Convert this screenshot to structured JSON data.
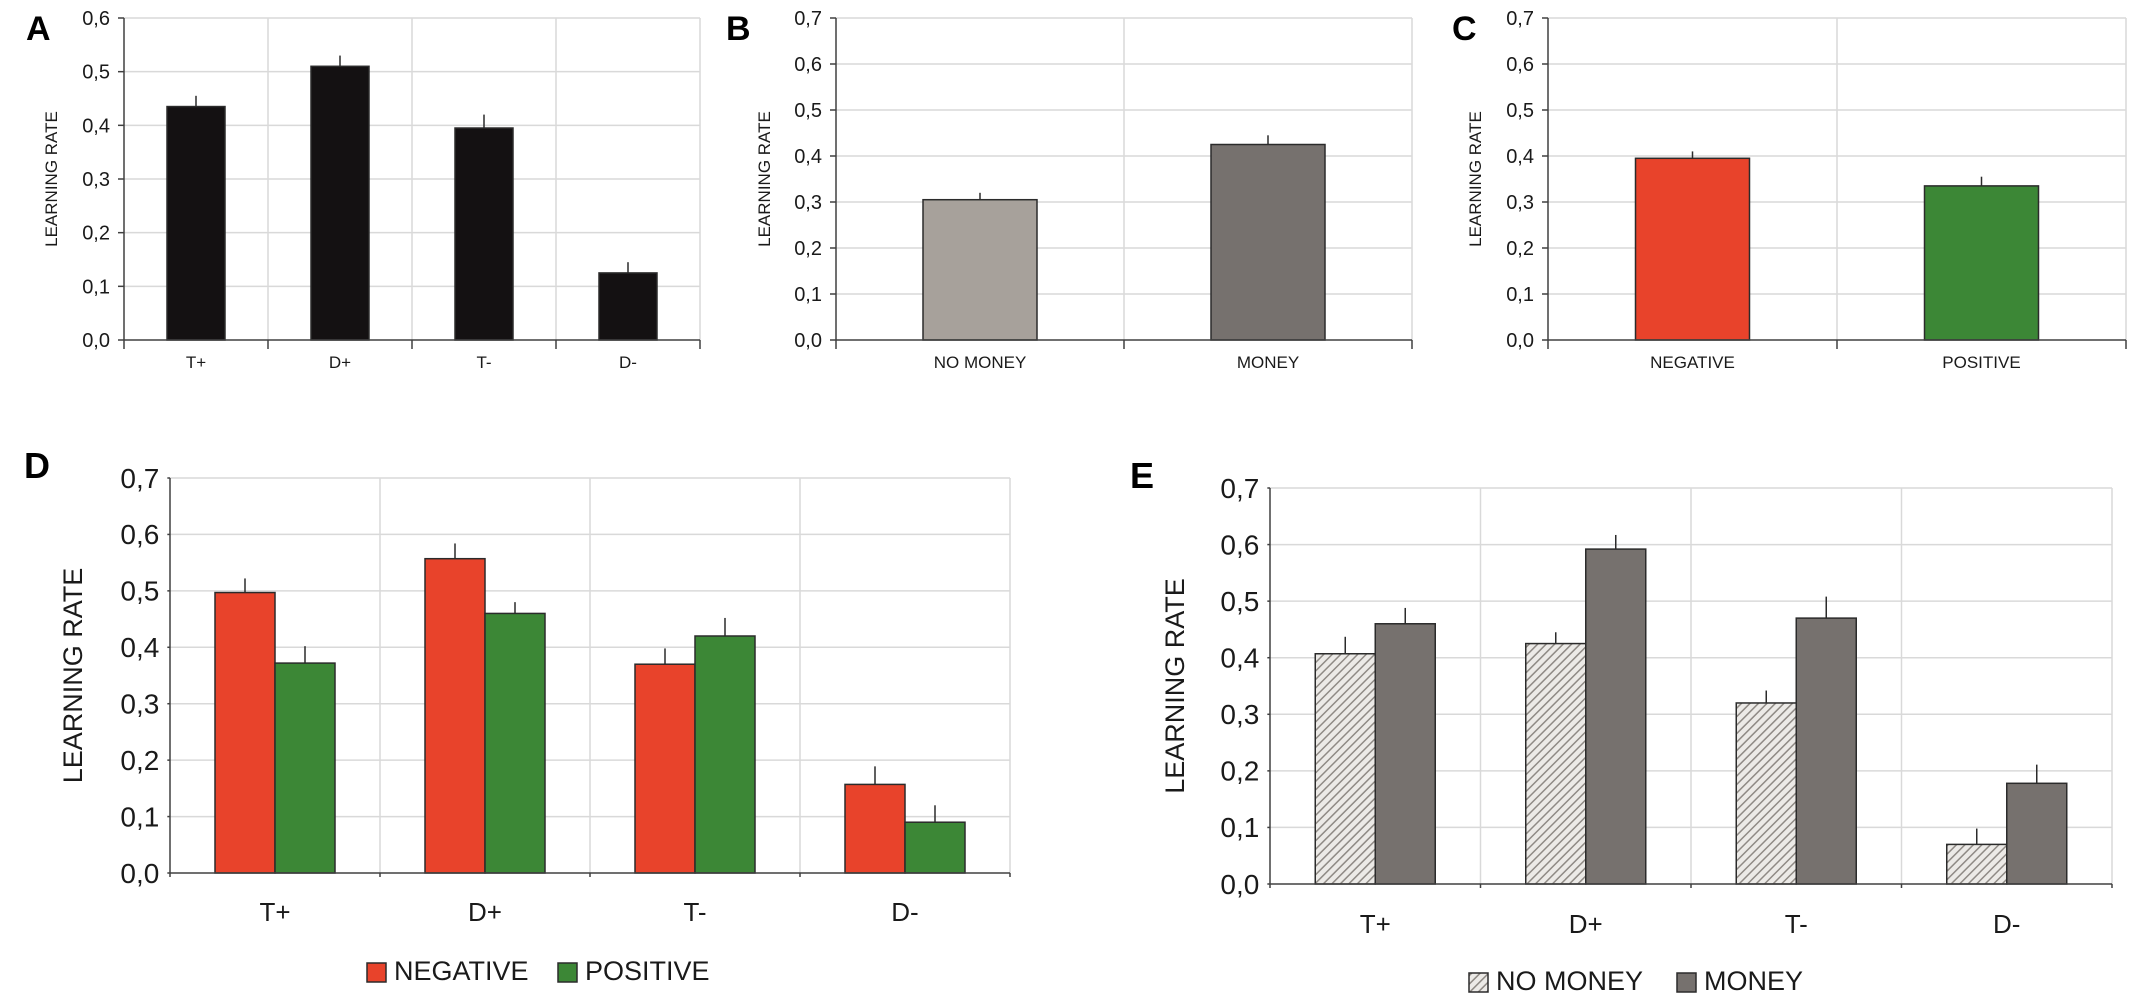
{
  "figure": {
    "colors": {
      "black_bar": "#141112",
      "no_money": "#a7a19b",
      "money": "#76716e",
      "negative": "#e8432b",
      "positive": "#3c8736",
      "grid": "#d9d9d9",
      "axis": "#404040"
    }
  },
  "chart_data": [
    {
      "panel": "A",
      "type": "bar",
      "title": "",
      "xlabel": "",
      "ylabel": "LEARNING RATE",
      "ylim": [
        0,
        0.6
      ],
      "yticks": [
        "0,0",
        "0,1",
        "0,2",
        "0,3",
        "0,4",
        "0,5",
        "0,6"
      ],
      "categories": [
        "T+",
        "D+",
        "T-",
        "D-"
      ],
      "series": [
        {
          "name": "",
          "color_key": "black_bar",
          "values": [
            0.435,
            0.51,
            0.395,
            0.125
          ],
          "errors": [
            0.02,
            0.02,
            0.025,
            0.02
          ]
        }
      ],
      "legend": []
    },
    {
      "panel": "B",
      "type": "bar",
      "title": "",
      "xlabel": "",
      "ylabel": "LEARNING RATE",
      "ylim": [
        0,
        0.7
      ],
      "yticks": [
        "0,0",
        "0,1",
        "0,2",
        "0,3",
        "0,4",
        "0,5",
        "0,6",
        "0,7"
      ],
      "categories": [
        "NO MONEY",
        "MONEY"
      ],
      "series": [
        {
          "name": "",
          "color_keys": [
            "no_money",
            "money"
          ],
          "values": [
            0.305,
            0.425
          ],
          "errors": [
            0.015,
            0.02
          ]
        }
      ],
      "legend": []
    },
    {
      "panel": "C",
      "type": "bar",
      "title": "",
      "xlabel": "",
      "ylabel": "LEARNING RATE",
      "ylim": [
        0,
        0.7
      ],
      "yticks": [
        "0,0",
        "0,1",
        "0,2",
        "0,3",
        "0,4",
        "0,5",
        "0,6",
        "0,7"
      ],
      "categories": [
        "NEGATIVE",
        "POSITIVE"
      ],
      "series": [
        {
          "name": "",
          "color_keys": [
            "negative",
            "positive"
          ],
          "values": [
            0.395,
            0.335
          ],
          "errors": [
            0.015,
            0.02
          ]
        }
      ],
      "legend": []
    },
    {
      "panel": "D",
      "type": "bar",
      "title": "",
      "xlabel": "",
      "ylabel": "LEARNING RATE",
      "ylim": [
        0,
        0.7
      ],
      "yticks": [
        "0,0",
        "0,1",
        "0,2",
        "0,3",
        "0,4",
        "0,5",
        "0,6",
        "0,7"
      ],
      "categories": [
        "T+",
        "D+",
        "T-",
        "D-"
      ],
      "series": [
        {
          "name": "NEGATIVE",
          "color_key": "negative",
          "values": [
            0.497,
            0.557,
            0.37,
            0.157
          ],
          "errors": [
            0.025,
            0.027,
            0.028,
            0.032
          ]
        },
        {
          "name": "POSITIVE",
          "color_key": "positive",
          "values": [
            0.372,
            0.46,
            0.42,
            0.09
          ],
          "errors": [
            0.03,
            0.02,
            0.032,
            0.03
          ]
        }
      ],
      "legend": [
        "NEGATIVE",
        "POSITIVE"
      ]
    },
    {
      "panel": "E",
      "type": "bar",
      "title": "",
      "xlabel": "",
      "ylabel": "LEARNING RATE",
      "ylim": [
        0,
        0.7
      ],
      "yticks": [
        "0,0",
        "0,1",
        "0,2",
        "0,3",
        "0,4",
        "0,5",
        "0,6",
        "0,7"
      ],
      "categories": [
        "T+",
        "D+",
        "T-",
        "D-"
      ],
      "series": [
        {
          "name": "NO MONEY",
          "color_key": "no_money",
          "hatched": true,
          "values": [
            0.407,
            0.425,
            0.32,
            0.07
          ],
          "errors": [
            0.03,
            0.02,
            0.022,
            0.028
          ]
        },
        {
          "name": "MONEY",
          "color_key": "money",
          "hatched": false,
          "values": [
            0.46,
            0.592,
            0.47,
            0.178
          ],
          "errors": [
            0.028,
            0.025,
            0.038,
            0.033
          ]
        }
      ],
      "legend": [
        "NO MONEY",
        "MONEY"
      ]
    }
  ]
}
